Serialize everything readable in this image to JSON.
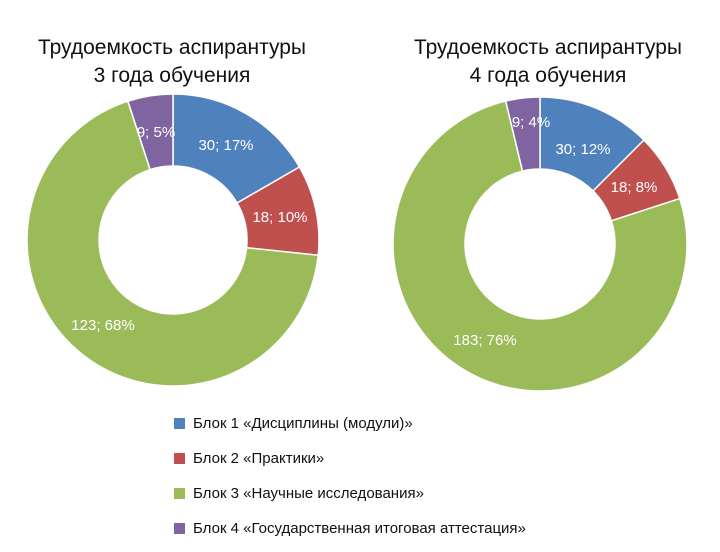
{
  "colors": {
    "block1": "#4F81BD",
    "block2": "#C0504D",
    "block3": "#9BBB59",
    "block4": "#8064A2"
  },
  "legend": [
    {
      "label": "Блок 1 «Дисциплины (модули)»",
      "color": "#4F81BD"
    },
    {
      "label": "Блок 2 «Практики»",
      "color": "#C0504D"
    },
    {
      "label": "Блок 3 «Научные исследования»",
      "color": "#9BBB59"
    },
    {
      "label": "Блок 4 «Государственная итоговая аттестация»",
      "color": "#8064A2"
    }
  ],
  "chart_data": [
    {
      "type": "pie",
      "title_line1": "Трудоемкость аспирантуры",
      "title_line2": "3 года обучения",
      "categories": [
        "Блок 1 «Дисциплины (модули)»",
        "Блок 2 «Практики»",
        "Блок 3 «Научные исследования»",
        "Блок 4 «Государственная итоговая аттестация»"
      ],
      "values": [
        30,
        18,
        123,
        9
      ],
      "data_labels": [
        "30; 17%",
        "18; 10%",
        "123; 68%",
        "9; 5%"
      ],
      "colors": [
        "#4F81BD",
        "#C0504D",
        "#9BBB59",
        "#8064A2"
      ],
      "legend": "bottom"
    },
    {
      "type": "pie",
      "title_line1": "Трудоемкость аспирантуры",
      "title_line2": "4 года обучения",
      "categories": [
        "Блок 1 «Дисциплины (модули)»",
        "Блок 2 «Практики»",
        "Блок 3 «Научные исследования»",
        "Блок 4 «Государственная итоговая аттестация»"
      ],
      "values": [
        30,
        18,
        183,
        9
      ],
      "data_labels": [
        "30; 12%",
        "18; 8%",
        "183; 76%",
        "9; 4%"
      ],
      "colors": [
        "#4F81BD",
        "#C0504D",
        "#9BBB59",
        "#8064A2"
      ],
      "legend": "bottom"
    }
  ]
}
